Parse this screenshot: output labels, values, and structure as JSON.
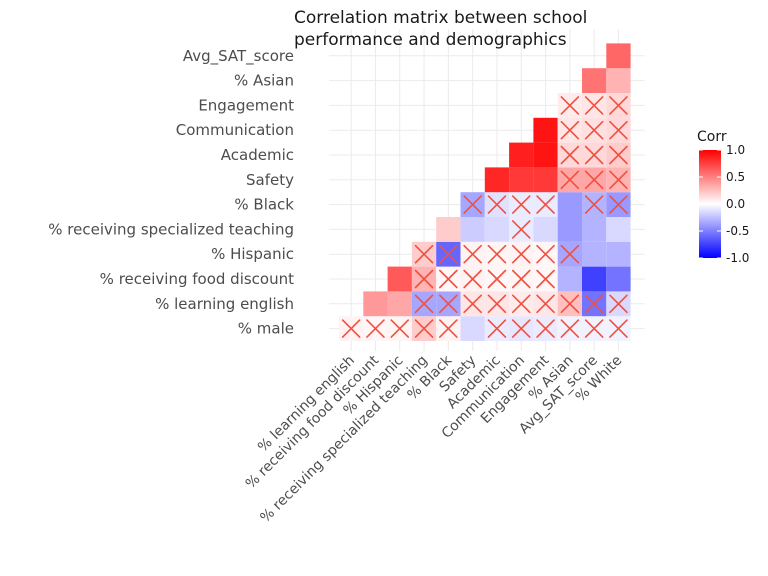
{
  "chart_data": {
    "type": "heatmap",
    "title_lines": [
      "Correlation matrix between school",
      "performance and demographics"
    ],
    "variables": [
      "% male",
      "% learning english",
      "% receiving food discount",
      "% Hispanic",
      "% receiving specialized teaching",
      "% Black",
      "Safety",
      "Academic",
      "Communication",
      "Engagement",
      "% Asian",
      "Avg_SAT_score",
      "% White"
    ],
    "y_axis": [
      "% male",
      "% learning english",
      "% receiving food discount",
      "% Hispanic",
      "% receiving specialized teaching",
      "% Black",
      "Safety",
      "Academic",
      "Communication",
      "Engagement",
      "% Asian",
      "Avg_SAT_score"
    ],
    "x_axis": [
      "% learning english",
      "% receiving food discount",
      "% Hispanic",
      "% receiving specialized teaching",
      "% Black",
      "Safety",
      "Academic",
      "Communication",
      "Engagement",
      "% Asian",
      "Avg_SAT_score",
      "% White"
    ],
    "legend": {
      "title": "Corr",
      "ticks": [
        "1.0",
        "0.5",
        "0.0",
        "-0.5",
        "-1.0"
      ],
      "tick_values": [
        1,
        0.5,
        0,
        -0.5,
        -1
      ],
      "placement": "right"
    },
    "colors": {
      "high": "#ff0000",
      "mid": "#ffffff",
      "low": "#0000ff",
      "cross": "#f05040"
    },
    "cells": [
      {
        "row": "% male",
        "col": "% learning english",
        "value": 0.05,
        "sig": false
      },
      {
        "row": "% male",
        "col": "% receiving food discount",
        "value": 0.03,
        "sig": false
      },
      {
        "row": "% male",
        "col": "% Hispanic",
        "value": 0.04,
        "sig": false
      },
      {
        "row": "% male",
        "col": "% receiving specialized teaching",
        "value": 0.2,
        "sig": false
      },
      {
        "row": "% male",
        "col": "% Black",
        "value": 0.05,
        "sig": false
      },
      {
        "row": "% male",
        "col": "Safety",
        "value": -0.15,
        "sig": true
      },
      {
        "row": "% male",
        "col": "Academic",
        "value": -0.08,
        "sig": false
      },
      {
        "row": "% male",
        "col": "Communication",
        "value": -0.1,
        "sig": false
      },
      {
        "row": "% male",
        "col": "Engagement",
        "value": -0.08,
        "sig": false
      },
      {
        "row": "% male",
        "col": "% Asian",
        "value": -0.05,
        "sig": false
      },
      {
        "row": "% male",
        "col": "Avg_SAT_score",
        "value": -0.05,
        "sig": false
      },
      {
        "row": "% male",
        "col": "% White",
        "value": -0.05,
        "sig": false
      },
      {
        "row": "% learning english",
        "col": "% receiving food discount",
        "value": 0.4,
        "sig": true
      },
      {
        "row": "% learning english",
        "col": "% Hispanic",
        "value": 0.35,
        "sig": true
      },
      {
        "row": "% learning english",
        "col": "% receiving specialized teaching",
        "value": -0.35,
        "sig": false
      },
      {
        "row": "% learning english",
        "col": "% Black",
        "value": -0.35,
        "sig": false
      },
      {
        "row": "% learning english",
        "col": "Safety",
        "value": 0.1,
        "sig": false
      },
      {
        "row": "% learning english",
        "col": "Academic",
        "value": 0.1,
        "sig": false
      },
      {
        "row": "% learning english",
        "col": "Communication",
        "value": 0.08,
        "sig": false
      },
      {
        "row": "% learning english",
        "col": "Engagement",
        "value": 0.1,
        "sig": false
      },
      {
        "row": "% learning english",
        "col": "% Asian",
        "value": 0.25,
        "sig": false
      },
      {
        "row": "% learning english",
        "col": "Avg_SAT_score",
        "value": -0.55,
        "sig": false
      },
      {
        "row": "% learning english",
        "col": "% White",
        "value": -0.15,
        "sig": false
      },
      {
        "row": "% receiving food discount",
        "col": "% Hispanic",
        "value": 0.65,
        "sig": true
      },
      {
        "row": "% receiving food discount",
        "col": "% receiving specialized teaching",
        "value": 0.3,
        "sig": false
      },
      {
        "row": "% receiving food discount",
        "col": "% Black",
        "value": 0.03,
        "sig": false
      },
      {
        "row": "% receiving food discount",
        "col": "Safety",
        "value": 0.05,
        "sig": false
      },
      {
        "row": "% receiving food discount",
        "col": "Academic",
        "value": 0.03,
        "sig": false
      },
      {
        "row": "% receiving food discount",
        "col": "Communication",
        "value": 0.04,
        "sig": false
      },
      {
        "row": "% receiving food discount",
        "col": "Engagement",
        "value": 0.03,
        "sig": false
      },
      {
        "row": "% receiving food discount",
        "col": "% Asian",
        "value": -0.3,
        "sig": true
      },
      {
        "row": "% receiving food discount",
        "col": "Avg_SAT_score",
        "value": -0.75,
        "sig": true
      },
      {
        "row": "% receiving food discount",
        "col": "% White",
        "value": -0.55,
        "sig": true
      },
      {
        "row": "% Hispanic",
        "col": "% receiving specialized teaching",
        "value": 0.2,
        "sig": false
      },
      {
        "row": "% Hispanic",
        "col": "% Black",
        "value": -0.6,
        "sig": false
      },
      {
        "row": "% Hispanic",
        "col": "Safety",
        "value": 0.05,
        "sig": false
      },
      {
        "row": "% Hispanic",
        "col": "Academic",
        "value": 0.04,
        "sig": false
      },
      {
        "row": "% Hispanic",
        "col": "Communication",
        "value": 0.05,
        "sig": false
      },
      {
        "row": "% Hispanic",
        "col": "Engagement",
        "value": 0.03,
        "sig": false
      },
      {
        "row": "% Hispanic",
        "col": "% Asian",
        "value": -0.35,
        "sig": false
      },
      {
        "row": "% Hispanic",
        "col": "Avg_SAT_score",
        "value": -0.3,
        "sig": true
      },
      {
        "row": "% Hispanic",
        "col": "% White",
        "value": -0.3,
        "sig": true
      },
      {
        "row": "% receiving specialized teaching",
        "col": "% Black",
        "value": 0.2,
        "sig": true
      },
      {
        "row": "% receiving specialized teaching",
        "col": "Safety",
        "value": -0.2,
        "sig": true
      },
      {
        "row": "% receiving specialized teaching",
        "col": "Academic",
        "value": -0.15,
        "sig": true
      },
      {
        "row": "% receiving specialized teaching",
        "col": "Communication",
        "value": -0.08,
        "sig": false
      },
      {
        "row": "% receiving specialized teaching",
        "col": "Engagement",
        "value": -0.15,
        "sig": true
      },
      {
        "row": "% receiving specialized teaching",
        "col": "% Asian",
        "value": -0.4,
        "sig": true
      },
      {
        "row": "% receiving specialized teaching",
        "col": "Avg_SAT_score",
        "value": -0.3,
        "sig": true
      },
      {
        "row": "% receiving specialized teaching",
        "col": "% White",
        "value": -0.15,
        "sig": true
      },
      {
        "row": "% Black",
        "col": "Safety",
        "value": -0.35,
        "sig": false
      },
      {
        "row": "% Black",
        "col": "Academic",
        "value": -0.12,
        "sig": false
      },
      {
        "row": "% Black",
        "col": "Communication",
        "value": -0.08,
        "sig": false
      },
      {
        "row": "% Black",
        "col": "Engagement",
        "value": -0.08,
        "sig": false
      },
      {
        "row": "% Black",
        "col": "% Asian",
        "value": -0.4,
        "sig": true
      },
      {
        "row": "% Black",
        "col": "Avg_SAT_score",
        "value": -0.3,
        "sig": false
      },
      {
        "row": "% Black",
        "col": "% White",
        "value": -0.4,
        "sig": false
      },
      {
        "row": "Safety",
        "col": "Academic",
        "value": 0.85,
        "sig": true
      },
      {
        "row": "Safety",
        "col": "Communication",
        "value": 0.78,
        "sig": true
      },
      {
        "row": "Safety",
        "col": "Engagement",
        "value": 0.78,
        "sig": true
      },
      {
        "row": "Safety",
        "col": "% Asian",
        "value": 0.35,
        "sig": false
      },
      {
        "row": "Safety",
        "col": "Avg_SAT_score",
        "value": 0.35,
        "sig": false
      },
      {
        "row": "Safety",
        "col": "% White",
        "value": 0.3,
        "sig": false
      },
      {
        "row": "Academic",
        "col": "Communication",
        "value": 0.88,
        "sig": true
      },
      {
        "row": "Academic",
        "col": "Engagement",
        "value": 0.92,
        "sig": true
      },
      {
        "row": "Academic",
        "col": "% Asian",
        "value": 0.15,
        "sig": false
      },
      {
        "row": "Academic",
        "col": "Avg_SAT_score",
        "value": 0.15,
        "sig": false
      },
      {
        "row": "Academic",
        "col": "% White",
        "value": 0.2,
        "sig": false
      },
      {
        "row": "Communication",
        "col": "Engagement",
        "value": 0.92,
        "sig": true
      },
      {
        "row": "Communication",
        "col": "% Asian",
        "value": 0.1,
        "sig": false
      },
      {
        "row": "Communication",
        "col": "Avg_SAT_score",
        "value": 0.12,
        "sig": false
      },
      {
        "row": "Communication",
        "col": "% White",
        "value": 0.15,
        "sig": false
      },
      {
        "row": "Engagement",
        "col": "% Asian",
        "value": 0.08,
        "sig": false
      },
      {
        "row": "Engagement",
        "col": "Avg_SAT_score",
        "value": 0.1,
        "sig": false
      },
      {
        "row": "Engagement",
        "col": "% White",
        "value": 0.15,
        "sig": false
      },
      {
        "row": "% Asian",
        "col": "Avg_SAT_score",
        "value": 0.55,
        "sig": true
      },
      {
        "row": "% Asian",
        "col": "% White",
        "value": 0.3,
        "sig": true
      },
      {
        "row": "Avg_SAT_score",
        "col": "% White",
        "value": 0.6,
        "sig": true
      }
    ]
  }
}
